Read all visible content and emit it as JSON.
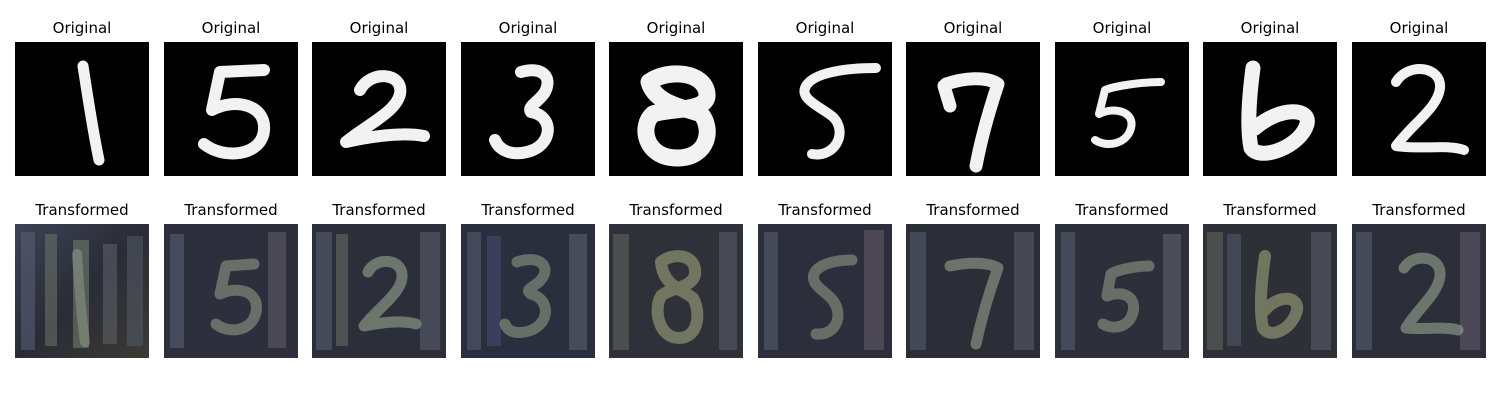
{
  "figure": {
    "original_label": "Original",
    "transformed_label": "Transformed",
    "samples": [
      {
        "digit": "1",
        "original_title": "Original",
        "transformed_title": "Transformed"
      },
      {
        "digit": "5",
        "original_title": "Original",
        "transformed_title": "Transformed"
      },
      {
        "digit": "2",
        "original_title": "Original",
        "transformed_title": "Transformed"
      },
      {
        "digit": "3",
        "original_title": "Original",
        "transformed_title": "Transformed"
      },
      {
        "digit": "8",
        "original_title": "Original",
        "transformed_title": "Transformed"
      },
      {
        "digit": "5",
        "original_title": "Original",
        "transformed_title": "Transformed"
      },
      {
        "digit": "7",
        "original_title": "Original",
        "transformed_title": "Transformed"
      },
      {
        "digit": "5",
        "original_title": "Original",
        "transformed_title": "Transformed"
      },
      {
        "digit": "6",
        "original_title": "Original",
        "transformed_title": "Transformed"
      },
      {
        "digit": "2",
        "original_title": "Original",
        "transformed_title": "Transformed"
      }
    ]
  },
  "colors": {
    "background": "#ffffff",
    "original_bg": "#000000",
    "original_stroke": "#f2f2f2",
    "transformed_bg": "#2b2e3a",
    "transformed_stroke": "#8f9a86"
  }
}
